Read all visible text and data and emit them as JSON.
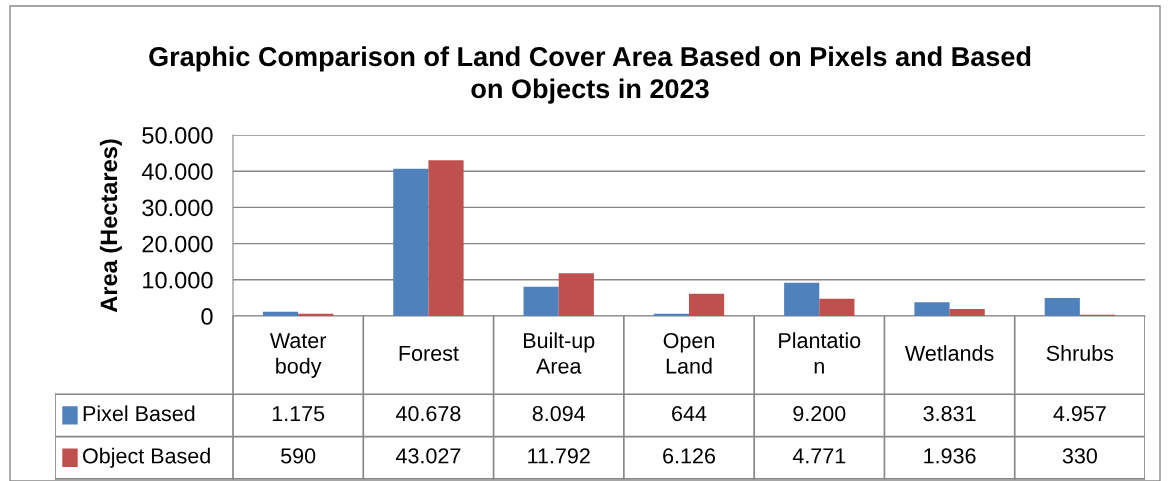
{
  "chart_data": {
    "type": "bar",
    "title": "Graphic Comparison of Land Cover Area Based on Pixels and Based\non Objects in 2023",
    "ylabel": "Area (Hectares)",
    "categories": [
      "Water\nbody",
      "Forest",
      "Built-up\nArea",
      "Open\nLand",
      "Plantatio\nn",
      "Wetlands",
      "Shrubs"
    ],
    "series": [
      {
        "name": "Pixel Based",
        "color": "#4f81bd",
        "values": [
          1175,
          40678,
          8094,
          644,
          9200,
          3831,
          4957
        ],
        "value_labels": [
          "1.175",
          "40.678",
          "8.094",
          "644",
          "9.200",
          "3.831",
          "4.957"
        ]
      },
      {
        "name": "Object Based",
        "color": "#c0504d",
        "values": [
          590,
          43027,
          11792,
          6126,
          4771,
          1936,
          330
        ],
        "value_labels": [
          "590",
          "43.027",
          "11.792",
          "6.126",
          "4.771",
          "1.936",
          "330"
        ]
      }
    ],
    "ylim": [
      0,
      50000
    ],
    "yticks": [
      0,
      {
        "value": 10000,
        "label": "10.000"
      },
      {
        "value": 20000,
        "label": "20.000"
      },
      {
        "value": 30000,
        "label": "30.000"
      },
      {
        "value": 40000,
        "label": "40.000"
      },
      {
        "value": 50000,
        "label": "50.000"
      }
    ],
    "grid": "y",
    "legend": "left"
  }
}
